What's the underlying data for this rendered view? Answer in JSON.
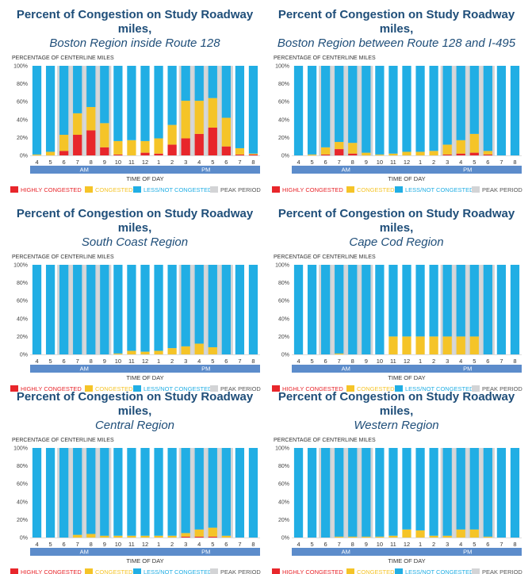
{
  "common": {
    "y_axis_label": "PERCENTAGE OF CENTERLINE MILES",
    "x_axis_label": "TIME OF DAY",
    "am_label": "AM",
    "pm_label": "PM",
    "legend": {
      "highly": "HIGHLY CONGESTED",
      "congested": "CONGESTED",
      "less": "LESS/NOT CONGESTED",
      "peak": "PEAK PERIOD"
    },
    "colors": {
      "highly": "#e8262b",
      "congested": "#f5c428",
      "less": "#21aee4",
      "peak": "#d3d4d6",
      "band": "#5c8ccb",
      "title": "#1f4e79"
    }
  },
  "chart_data": [
    {
      "type": "bar",
      "title": "Percent of Congestion on Study Roadway miles,",
      "subtitle": "Boston Region inside Route 128",
      "xlabel": "TIME OF DAY",
      "ylabel": "PERCENTAGE OF CENTERLINE MILES",
      "ylim": [
        0,
        100
      ],
      "yticks": [
        "0%",
        "20%",
        "40%",
        "60%",
        "80%",
        "100%"
      ],
      "categories": [
        "4",
        "5",
        "6",
        "7",
        "8",
        "9",
        "10",
        "11",
        "12",
        "1",
        "2",
        "3",
        "4",
        "5",
        "6",
        "7",
        "8"
      ],
      "peak_period_hours": [
        "6",
        "7",
        "8",
        "9",
        "3",
        "4",
        "5",
        "6"
      ],
      "series": [
        {
          "name": "HIGHLY CONGESTED",
          "values": [
            0,
            0,
            5,
            23,
            28,
            9,
            1,
            0,
            3,
            2,
            12,
            19,
            24,
            31,
            10,
            1,
            1
          ]
        },
        {
          "name": "CONGESTED",
          "values": [
            1,
            4,
            18,
            24,
            26,
            27,
            15,
            17,
            13,
            17,
            22,
            42,
            37,
            33,
            32,
            7,
            1
          ]
        },
        {
          "name": "LESS/NOT CONGESTED",
          "values": [
            99,
            96,
            77,
            53,
            46,
            64,
            84,
            83,
            84,
            81,
            66,
            39,
            39,
            36,
            58,
            92,
            98
          ]
        }
      ]
    },
    {
      "type": "bar",
      "title": "Percent of Congestion on Study Roadway miles,",
      "subtitle": "Boston Region between Route 128 and I-495",
      "xlabel": "TIME OF DAY",
      "ylabel": "PERCENTAGE OF CENTERLINE MILES",
      "ylim": [
        0,
        100
      ],
      "yticks": [
        "0%",
        "20%",
        "40%",
        "60%",
        "80%",
        "100%"
      ],
      "categories": [
        "4",
        "5",
        "6",
        "7",
        "8",
        "9",
        "10",
        "11",
        "12",
        "1",
        "2",
        "3",
        "4",
        "5",
        "6",
        "7",
        "8"
      ],
      "peak_period_hours": [
        "6",
        "7",
        "8",
        "9",
        "3",
        "4",
        "5",
        "6"
      ],
      "series": [
        {
          "name": "HIGHLY CONGESTED",
          "values": [
            0,
            0,
            1,
            7,
            2,
            0,
            0,
            0,
            0,
            0,
            0,
            1,
            2,
            3,
            1,
            0,
            0
          ]
        },
        {
          "name": "CONGESTED",
          "values": [
            0,
            1,
            8,
            8,
            12,
            3,
            1,
            2,
            4,
            4,
            5,
            11,
            15,
            21,
            4,
            0,
            0
          ]
        },
        {
          "name": "LESS/NOT CONGESTED",
          "values": [
            100,
            99,
            91,
            85,
            86,
            97,
            99,
            98,
            96,
            96,
            95,
            88,
            83,
            76,
            95,
            100,
            100
          ]
        }
      ]
    },
    {
      "type": "bar",
      "title": "Percent of Congestion on Study Roadway miles,",
      "subtitle": "South Coast Region",
      "xlabel": "TIME OF DAY",
      "ylabel": "PERCENTAGE OF CENTERLINE MILES",
      "ylim": [
        0,
        100
      ],
      "yticks": [
        "0%",
        "20%",
        "40%",
        "60%",
        "80%",
        "100%"
      ],
      "categories": [
        "4",
        "5",
        "6",
        "7",
        "8",
        "9",
        "10",
        "11",
        "12",
        "1",
        "2",
        "3",
        "4",
        "5",
        "6",
        "7",
        "8"
      ],
      "peak_period_hours": [
        "6",
        "7",
        "8",
        "9",
        "3",
        "4",
        "5",
        "6"
      ],
      "series": [
        {
          "name": "HIGHLY CONGESTED",
          "values": [
            0,
            0,
            0,
            0,
            0,
            0,
            0,
            0,
            0,
            0,
            0,
            0,
            0,
            0,
            0,
            0,
            0
          ]
        },
        {
          "name": "CONGESTED",
          "values": [
            0,
            0,
            0,
            0,
            0,
            0,
            1,
            4,
            3,
            4,
            7,
            9,
            12,
            8,
            0,
            0,
            0
          ]
        },
        {
          "name": "LESS/NOT CONGESTED",
          "values": [
            100,
            100,
            100,
            100,
            100,
            100,
            99,
            96,
            97,
            96,
            93,
            91,
            88,
            92,
            100,
            100,
            100
          ]
        }
      ]
    },
    {
      "type": "bar",
      "title": "Percent of Congestion on Study Roadway miles,",
      "subtitle": "Cape Cod Region",
      "xlabel": "TIME OF DAY",
      "ylabel": "PERCENTAGE OF CENTERLINE MILES",
      "ylim": [
        0,
        100
      ],
      "yticks": [
        "0%",
        "20%",
        "40%",
        "60%",
        "80%",
        "100%"
      ],
      "categories": [
        "4",
        "5",
        "6",
        "7",
        "8",
        "9",
        "10",
        "11",
        "12",
        "1",
        "2",
        "3",
        "4",
        "5",
        "6",
        "7",
        "8"
      ],
      "peak_period_hours": [
        "6",
        "7",
        "8",
        "9",
        "3",
        "4",
        "5",
        "6"
      ],
      "series": [
        {
          "name": "HIGHLY CONGESTED",
          "values": [
            0,
            0,
            0,
            0,
            0,
            0,
            0,
            0,
            0,
            0,
            0,
            0,
            0,
            0,
            0,
            0,
            0
          ]
        },
        {
          "name": "CONGESTED",
          "values": [
            0,
            0,
            0,
            1,
            0,
            0,
            0,
            20,
            20,
            20,
            20,
            20,
            20,
            20,
            0,
            0,
            0
          ]
        },
        {
          "name": "LESS/NOT CONGESTED",
          "values": [
            100,
            100,
            100,
            99,
            100,
            100,
            100,
            80,
            80,
            80,
            80,
            80,
            80,
            80,
            100,
            100,
            100
          ]
        }
      ]
    },
    {
      "type": "bar",
      "title": "Percent of Congestion on Study Roadway miles,",
      "subtitle": "Central Region",
      "xlabel": "TIME OF DAY",
      "ylabel": "PERCENTAGE OF CENTERLINE MILES",
      "ylim": [
        0,
        100
      ],
      "yticks": [
        "0%",
        "20%",
        "40%",
        "60%",
        "80%",
        "100%"
      ],
      "categories": [
        "4",
        "5",
        "6",
        "7",
        "8",
        "9",
        "10",
        "11",
        "12",
        "1",
        "2",
        "3",
        "4",
        "5",
        "6",
        "7",
        "8"
      ],
      "peak_period_hours": [
        "6",
        "7",
        "8",
        "9",
        "3",
        "4",
        "5",
        "6"
      ],
      "series": [
        {
          "name": "HIGHLY CONGESTED",
          "values": [
            0,
            0,
            0,
            0,
            0,
            0,
            0,
            0,
            0,
            0,
            0,
            1,
            1,
            1,
            0,
            0,
            0
          ]
        },
        {
          "name": "CONGESTED",
          "values": [
            0,
            0,
            0,
            3,
            4,
            2,
            2,
            2,
            2,
            2,
            2,
            4,
            8,
            10,
            2,
            0,
            0
          ]
        },
        {
          "name": "LESS/NOT CONGESTED",
          "values": [
            100,
            100,
            100,
            97,
            96,
            98,
            98,
            98,
            98,
            98,
            98,
            95,
            91,
            89,
            98,
            100,
            100
          ]
        }
      ]
    },
    {
      "type": "bar",
      "title": "Percent of Congestion on Study Roadway miles,",
      "subtitle": "Western Region",
      "xlabel": "TIME OF DAY",
      "ylabel": "PERCENTAGE OF CENTERLINE MILES",
      "ylim": [
        0,
        100
      ],
      "yticks": [
        "0%",
        "20%",
        "40%",
        "60%",
        "80%",
        "100%"
      ],
      "categories": [
        "4",
        "5",
        "6",
        "7",
        "8",
        "9",
        "10",
        "11",
        "12",
        "1",
        "2",
        "3",
        "4",
        "5",
        "6",
        "7",
        "8"
      ],
      "peak_period_hours": [
        "6",
        "7",
        "8",
        "9",
        "3",
        "4",
        "5",
        "6"
      ],
      "series": [
        {
          "name": "HIGHLY CONGESTED",
          "values": [
            0,
            0,
            0,
            0,
            0,
            0,
            0,
            0,
            0,
            0,
            0,
            0,
            0,
            0,
            0,
            0,
            0
          ]
        },
        {
          "name": "CONGESTED",
          "values": [
            0,
            0,
            0,
            1,
            1,
            1,
            1,
            2,
            9,
            8,
            2,
            2,
            9,
            9,
            1,
            0,
            0
          ]
        },
        {
          "name": "LESS/NOT CONGESTED",
          "values": [
            100,
            100,
            100,
            99,
            99,
            99,
            99,
            98,
            91,
            92,
            98,
            98,
            91,
            91,
            99,
            100,
            100
          ]
        }
      ]
    }
  ]
}
